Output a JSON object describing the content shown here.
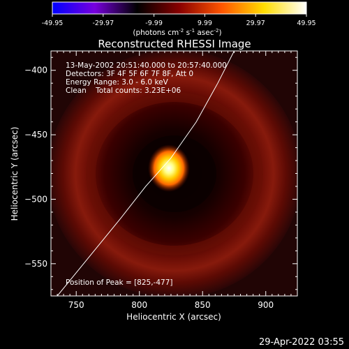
{
  "colorbar": {
    "ticks": [
      "-49.95",
      "-29.97",
      "-9.99",
      "9.99",
      "29.97",
      "49.95"
    ],
    "unit_prefix": "(photons cm",
    "unit_exp1": "-2",
    "unit_mid1": " s",
    "unit_exp2": "-1",
    "unit_mid2": " asec",
    "unit_exp3": "-2",
    "unit_suffix": ")",
    "gradient": [
      "#0000ff",
      "#7700dd",
      "#000000",
      "#880000",
      "#ff5500",
      "#ffdd00",
      "#ffffff"
    ]
  },
  "plot": {
    "title": "Reconstructed RHESSI Image",
    "info_lines": [
      "13-May-2002 20:51:40.000 to 20:57:40.000",
      "Detectors: 3F 4F 5F 6F 7F 8F, Att 0",
      "Energy Range: 3.0 - 6.0 keV",
      "Clean    Total counts: 3.23E+06"
    ],
    "peak_label": "Position of Peak = [825,-477]"
  },
  "footer": {
    "timestamp": "29-Apr-2022 03:55"
  },
  "chart_data": {
    "type": "heatmap",
    "title": "Reconstructed RHESSI Image",
    "xlabel": "Heliocentric X (arcsec)",
    "ylabel": "Heliocentric Y (arcsec)",
    "xlim": [
      730,
      925
    ],
    "ylim": [
      -575,
      -385
    ],
    "x_ticks": [
      750,
      800,
      850,
      900
    ],
    "y_ticks": [
      -400,
      -450,
      -500,
      -550
    ],
    "peak": {
      "x": 825,
      "y": -477
    },
    "colorbar_range": [
      -49.95,
      49.95
    ],
    "limb_curve": [
      [
        735,
        -575
      ],
      [
        760,
        -545
      ],
      [
        785,
        -515
      ],
      [
        805,
        -490
      ],
      [
        825,
        -468
      ],
      [
        845,
        -440
      ],
      [
        862,
        -410
      ],
      [
        875,
        -385
      ]
    ]
  }
}
